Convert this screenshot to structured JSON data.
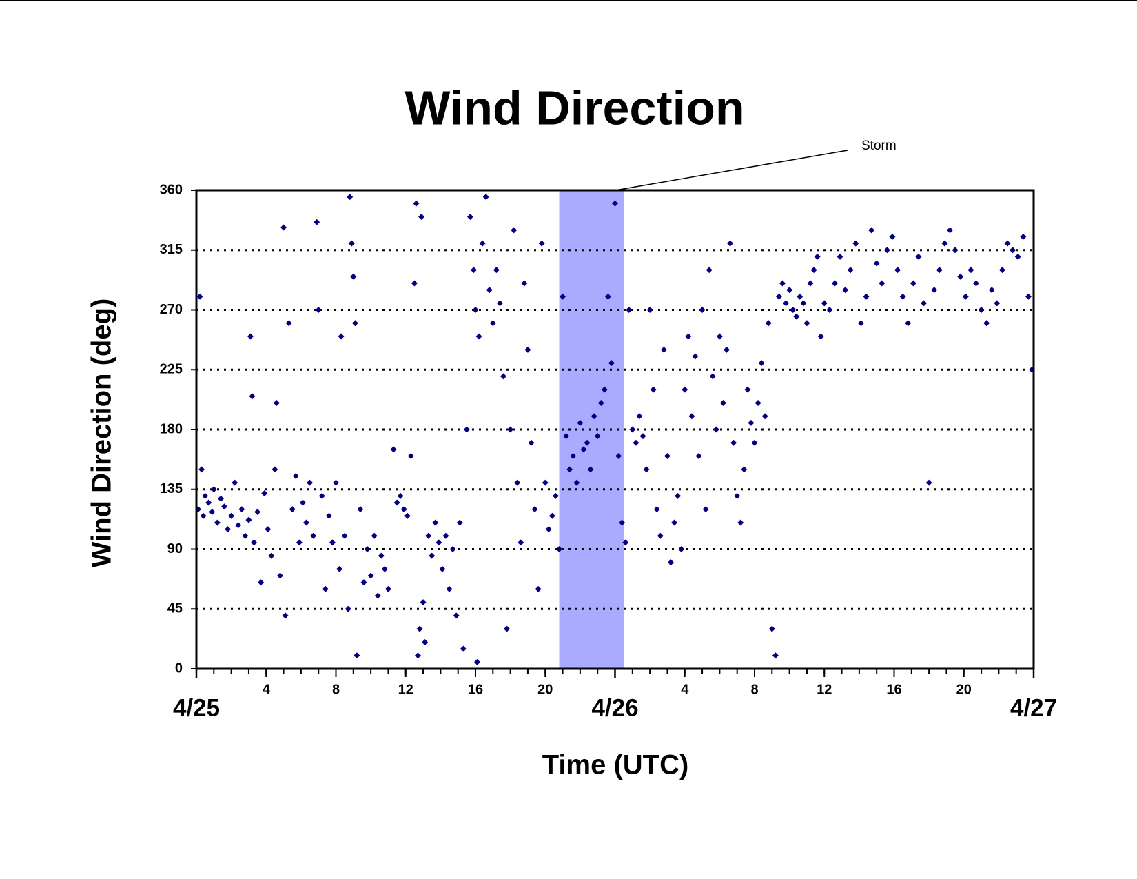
{
  "chart_data": {
    "type": "scatter",
    "title": "Wind Direction",
    "x_label": "Time (UTC)",
    "y_label": "Wind Direction (deg)",
    "xlim": [
      0,
      48
    ],
    "ylim": [
      0,
      360
    ],
    "yticks": [
      0,
      45,
      90,
      135,
      180,
      225,
      270,
      315,
      360
    ],
    "xticks": [
      4,
      8,
      12,
      16,
      20,
      {
        "value": 28,
        "label": "4"
      },
      {
        "value": 32,
        "label": "8"
      },
      {
        "value": 36,
        "label": "12"
      },
      {
        "value": 40,
        "label": "16"
      },
      {
        "value": 44,
        "label": "20"
      }
    ],
    "date_ticks": [
      {
        "value": 0,
        "label": "4/25"
      },
      {
        "value": 24,
        "label": "4/26"
      },
      {
        "value": 48,
        "label": "4/27"
      }
    ],
    "xminor_ticks": [
      0,
      1,
      2,
      3,
      4,
      5,
      6,
      7,
      8,
      9,
      10,
      11,
      12,
      13,
      14,
      15,
      16,
      17,
      18,
      19,
      20,
      21,
      22,
      23,
      24,
      25,
      26,
      27,
      28,
      29,
      30,
      31,
      32,
      33,
      34,
      35,
      36,
      37,
      38,
      39,
      40,
      41,
      42,
      43,
      44,
      45,
      46,
      47,
      48
    ],
    "grid": true,
    "storm": {
      "label": "Storm",
      "start": 20.8,
      "end": 24.5,
      "color": "#aaaaff"
    },
    "series": [
      {
        "color": "#000080",
        "x": [
          0.1,
          0.2,
          0.3,
          0.4,
          0.5,
          0.7,
          0.9,
          1.0,
          1.2,
          1.4,
          1.6,
          1.8,
          2.0,
          2.2,
          2.4,
          2.6,
          2.8,
          3.0,
          3.1,
          3.2,
          3.3,
          3.5,
          3.7,
          3.9,
          4.1,
          4.3,
          4.5,
          4.6,
          4.8,
          5.0,
          5.1,
          5.3,
          5.5,
          5.7,
          5.9,
          6.1,
          6.3,
          6.5,
          6.7,
          6.9,
          7.0,
          7.2,
          7.4,
          7.6,
          7.8,
          8.0,
          8.2,
          8.3,
          8.5,
          8.7,
          8.8,
          8.9,
          9.0,
          9.1,
          9.2,
          9.4,
          9.6,
          9.8,
          10.0,
          10.2,
          10.4,
          10.6,
          10.8,
          11.0,
          11.3,
          11.5,
          11.7,
          11.9,
          12.1,
          12.3,
          12.5,
          12.6,
          12.7,
          12.8,
          12.9,
          13.0,
          13.1,
          13.3,
          13.5,
          13.7,
          13.9,
          14.1,
          14.3,
          14.5,
          14.7,
          14.9,
          15.1,
          15.3,
          15.5,
          15.7,
          15.9,
          16.0,
          16.1,
          16.2,
          16.4,
          16.6,
          16.8,
          17.0,
          17.2,
          17.4,
          17.6,
          17.8,
          18.0,
          18.2,
          18.4,
          18.6,
          18.8,
          19.0,
          19.2,
          19.4,
          19.6,
          19.8,
          20.0,
          20.2,
          20.4,
          20.6,
          20.8,
          21.0,
          21.2,
          21.4,
          21.6,
          21.8,
          22.0,
          22.2,
          22.4,
          22.6,
          22.8,
          23.0,
          23.2,
          23.4,
          23.6,
          23.8,
          24.0,
          24.2,
          24.4,
          24.6,
          24.8,
          25.0,
          25.2,
          25.4,
          25.6,
          25.8,
          26.0,
          26.2,
          26.4,
          26.6,
          26.8,
          27.0,
          27.2,
          27.4,
          27.6,
          27.8,
          28.0,
          28.2,
          28.4,
          28.6,
          28.8,
          29.0,
          29.2,
          29.4,
          29.6,
          29.8,
          30.0,
          30.2,
          30.4,
          30.6,
          30.8,
          31.0,
          31.2,
          31.4,
          31.6,
          31.8,
          32.0,
          32.2,
          32.4,
          32.6,
          32.8,
          33.0,
          33.2,
          33.4,
          33.6,
          33.8,
          34.0,
          34.2,
          34.4,
          34.6,
          34.8,
          35.0,
          35.2,
          35.4,
          35.6,
          35.8,
          36.0,
          36.3,
          36.6,
          36.9,
          37.2,
          37.5,
          37.8,
          38.1,
          38.4,
          38.7,
          39.0,
          39.3,
          39.6,
          39.9,
          40.2,
          40.5,
          40.8,
          41.1,
          41.4,
          41.7,
          42.0,
          42.3,
          42.6,
          42.9,
          43.2,
          43.5,
          43.8,
          44.1,
          44.4,
          44.7,
          45.0,
          45.3,
          45.6,
          45.9,
          46.2,
          46.5,
          46.8,
          47.1,
          47.4,
          47.7,
          47.9
        ],
        "values": [
          120,
          280,
          150,
          115,
          130,
          125,
          118,
          135,
          110,
          128,
          122,
          105,
          115,
          140,
          108,
          120,
          100,
          112,
          250,
          205,
          95,
          118,
          65,
          132,
          105,
          85,
          150,
          200,
          70,
          332,
          40,
          260,
          120,
          145,
          95,
          125,
          110,
          140,
          100,
          336,
          270,
          130,
          60,
          115,
          95,
          140,
          75,
          250,
          100,
          45,
          355,
          320,
          295,
          260,
          10,
          120,
          65,
          90,
          70,
          100,
          55,
          85,
          75,
          60,
          165,
          125,
          130,
          120,
          115,
          160,
          290,
          350,
          10,
          30,
          340,
          50,
          20,
          100,
          85,
          110,
          95,
          75,
          100,
          60,
          90,
          40,
          110,
          15,
          180,
          340,
          300,
          270,
          5,
          250,
          320,
          355,
          285,
          260,
          300,
          275,
          220,
          30,
          180,
          330,
          140,
          95,
          290,
          240,
          170,
          120,
          60,
          320,
          140,
          105,
          115,
          130,
          90,
          280,
          175,
          150,
          160,
          140,
          185,
          165,
          170,
          150,
          190,
          175,
          200,
          210,
          280,
          230,
          350,
          160,
          110,
          95,
          270,
          180,
          170,
          190,
          175,
          150,
          270,
          210,
          120,
          100,
          240,
          160,
          80,
          110,
          130,
          90,
          210,
          250,
          190,
          235,
          160,
          270,
          120,
          300,
          220,
          180,
          250,
          200,
          240,
          320,
          170,
          130,
          110,
          150,
          210,
          185,
          170,
          200,
          230,
          190,
          260,
          30,
          10,
          280,
          290,
          275,
          285,
          270,
          265,
          280,
          275,
          260,
          290,
          300,
          310,
          250,
          275,
          270,
          290,
          310,
          285,
          300,
          320,
          260,
          280,
          330,
          305,
          290,
          315,
          325,
          300,
          280,
          260,
          290,
          310,
          275,
          140,
          285,
          300,
          320,
          330,
          315,
          295,
          280,
          300,
          290,
          270,
          260,
          285,
          275,
          300,
          320,
          315,
          310,
          325,
          280,
          225
        ]
      }
    ]
  }
}
